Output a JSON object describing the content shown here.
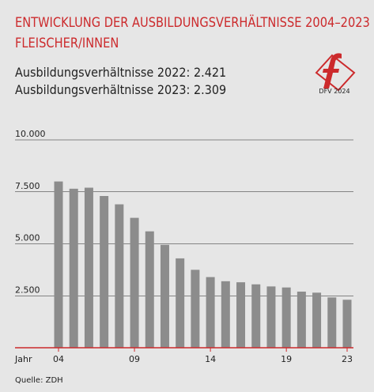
{
  "header": {
    "title_line1": "ENTWICKLUNG DER AUSBILDUNGSVERHÄLTNISSE 2004–2023",
    "title_line2": "FLEISCHER/INNEN",
    "stat_2022": "Ausbildungsverhältnisse 2022: 2.421",
    "stat_2023": "Ausbildungsverhältnisse 2023: 2.309"
  },
  "logo": {
    "caption": "DFV 2024",
    "icon": "dfv-f-logo",
    "color": "#cc2a2c"
  },
  "source": "Quelle: ZDH",
  "colors": {
    "accent": "#cc2a2c",
    "bar": "#8c8c8c",
    "grid": "#222222",
    "background": "#e6e6e6"
  },
  "chart_data": {
    "type": "bar",
    "categories": [
      "04",
      "05",
      "06",
      "07",
      "08",
      "09",
      "10",
      "11",
      "12",
      "13",
      "14",
      "15",
      "16",
      "17",
      "18",
      "19",
      "20",
      "21",
      "22",
      "23"
    ],
    "values": [
      8000,
      7650,
      7700,
      7300,
      6900,
      6250,
      5600,
      4950,
      4300,
      3750,
      3400,
      3200,
      3150,
      3050,
      2950,
      2900,
      2700,
      2650,
      2421,
      2309
    ],
    "x_tick_labels": [
      "04",
      "09",
      "14",
      "19",
      "23"
    ],
    "x_tick_categories": [
      "04",
      "09",
      "14",
      "19",
      "23"
    ],
    "x_axis_prefix": "Jahr",
    "y_ticks": [
      2500,
      5000,
      7500,
      10000
    ],
    "y_tick_labels": [
      "2.500",
      "5.000",
      "7.500",
      "10.000"
    ],
    "ylim": [
      0,
      10000
    ],
    "grid": true,
    "title": "",
    "xlabel": "",
    "ylabel": ""
  }
}
